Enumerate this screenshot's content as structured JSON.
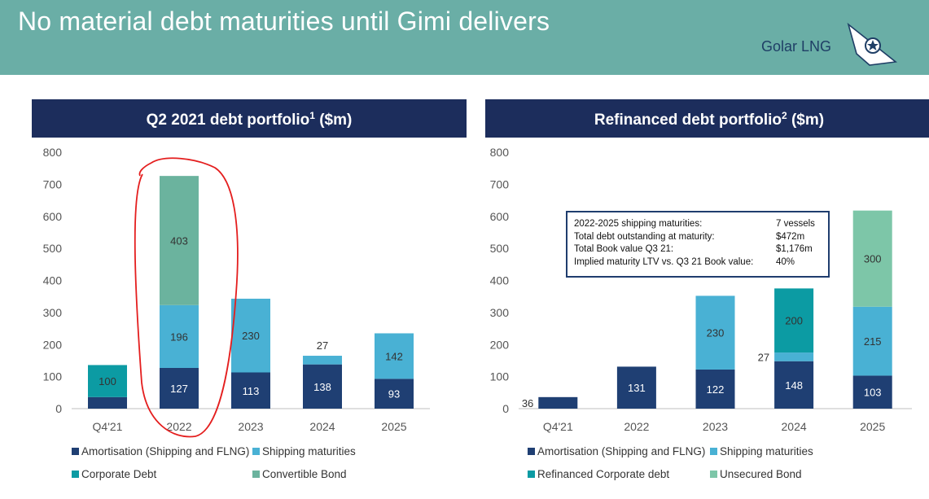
{
  "header": {
    "title": "No material debt maturities until Gimi delivers",
    "logo_text": "Golar LNG"
  },
  "colors": {
    "header_bg": "#6aaea6",
    "panel_title_bg": "#1c2d5c",
    "amortisation": "#1f3f73",
    "shipping": "#49b1d4",
    "corporate": "#0c9ba3",
    "convertible": "#6bb39e",
    "unsecured": "#7dc6a8",
    "annotation": "#e41e1e"
  },
  "chart_data": [
    {
      "type": "bar",
      "stacked": true,
      "title": "Q2 2021 debt portfolio",
      "title_sup": "1",
      "title_unit": "($m)",
      "categories": [
        "Q4'21",
        "2022",
        "2023",
        "2024",
        "2025"
      ],
      "ylim": [
        0,
        800
      ],
      "yticks": [
        0,
        100,
        200,
        300,
        400,
        500,
        600,
        700,
        800
      ],
      "grid": false,
      "legend_position": "bottom",
      "series": [
        {
          "name": "Amortisation (Shipping and FLNG)",
          "color_key": "amortisation",
          "label_color": "#ffffff",
          "values": [
            36,
            127,
            113,
            138,
            93
          ]
        },
        {
          "name": "Shipping maturities",
          "color_key": "shipping",
          "label_color": "#333333",
          "values": [
            0,
            196,
            230,
            27,
            142
          ]
        },
        {
          "name": "Corporate Debt",
          "color_key": "corporate",
          "label_color": "#333333",
          "values": [
            100,
            0,
            0,
            0,
            0
          ]
        },
        {
          "name": "Convertible Bond",
          "color_key": "convertible",
          "label_color": "#333333",
          "values": [
            0,
            403,
            0,
            0,
            0
          ]
        }
      ],
      "annotations": [
        {
          "type": "freehand-circle",
          "category": "2022",
          "color_key": "annotation"
        }
      ]
    },
    {
      "type": "bar",
      "stacked": true,
      "title": "Refinanced debt portfolio",
      "title_sup": "2",
      "title_unit": "($m)",
      "categories": [
        "Q4'21",
        "2022",
        "2023",
        "2024",
        "2025"
      ],
      "ylim": [
        0,
        800
      ],
      "yticks": [
        0,
        100,
        200,
        300,
        400,
        500,
        600,
        700,
        800
      ],
      "grid": false,
      "legend_position": "bottom",
      "series": [
        {
          "name": "Amortisation (Shipping and FLNG)",
          "color_key": "amortisation",
          "label_color": "#ffffff",
          "values": [
            36,
            131,
            122,
            148,
            103
          ]
        },
        {
          "name": "Shipping maturities",
          "color_key": "shipping",
          "label_color": "#333333",
          "values": [
            0,
            0,
            230,
            27,
            215
          ]
        },
        {
          "name": "Refinanced Corporate debt",
          "color_key": "corporate",
          "label_color": "#333333",
          "values": [
            0,
            0,
            0,
            200,
            0
          ]
        },
        {
          "name": "Unsecured Bond",
          "color_key": "unsecured",
          "label_color": "#333333",
          "values": [
            0,
            0,
            0,
            0,
            300
          ]
        }
      ]
    }
  ],
  "info_box": {
    "rows": [
      {
        "label": "2022-2025 shipping maturities:",
        "value": "7 vessels"
      },
      {
        "label": "Total debt outstanding at maturity:",
        "value": "$472m"
      },
      {
        "label": "Total Book value Q3 21:",
        "value": "$1,176m"
      },
      {
        "label": "Implied maturity LTV vs. Q3 21 Book value:",
        "value": "40%"
      }
    ]
  }
}
